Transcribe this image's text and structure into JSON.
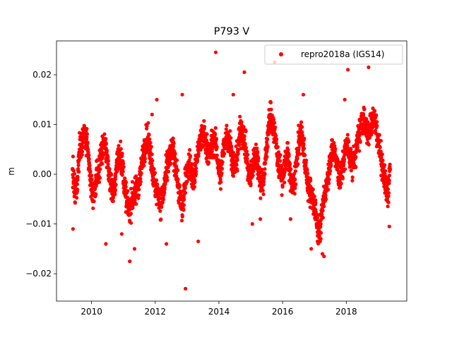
{
  "chart_data": {
    "type": "scatter",
    "title": "P793 V",
    "xlabel": "",
    "ylabel": "m",
    "xlim": [
      2008.9,
      2019.9
    ],
    "ylim": [
      -0.0255,
      0.0268
    ],
    "grid": false,
    "legend_position": "top-right",
    "marker_color": "#ff0000",
    "x_ticks": [
      2010,
      2012,
      2014,
      2016,
      2018
    ],
    "x_tick_labels": [
      "2010",
      "2012",
      "2014",
      "2016",
      "2018"
    ],
    "y_ticks": [
      -0.02,
      -0.01,
      0.0,
      0.01,
      0.02
    ],
    "y_tick_labels": [
      "−0.02",
      "−0.01",
      "0.00",
      "0.01",
      "0.02"
    ],
    "series": [
      {
        "name": "repro2018a (IGS14)",
        "color": "#ff0000",
        "x": [
          2009.4,
          2009.48,
          2009.55,
          2009.62,
          2009.7,
          2009.78,
          2009.85,
          2009.92,
          2010.0,
          2010.08,
          2010.15,
          2010.22,
          2010.3,
          2010.38,
          2010.45,
          2010.52,
          2010.6,
          2010.68,
          2010.75,
          2010.82,
          2010.9,
          2010.98,
          2011.05,
          2011.12,
          2011.2,
          2011.28,
          2011.35,
          2011.42,
          2011.5,
          2011.58,
          2011.65,
          2011.72,
          2011.8,
          2011.88,
          2011.95,
          2012.02,
          2012.1,
          2012.18,
          2012.25,
          2012.32,
          2012.4,
          2012.48,
          2012.55,
          2012.62,
          2012.7,
          2012.78,
          2012.85,
          2012.92,
          2013.0,
          2013.08,
          2013.15,
          2013.22,
          2013.3,
          2013.38,
          2013.45,
          2013.52,
          2013.6,
          2013.68,
          2013.75,
          2013.82,
          2013.9,
          2013.98,
          2014.05,
          2014.12,
          2014.2,
          2014.28,
          2014.35,
          2014.42,
          2014.5,
          2014.58,
          2014.65,
          2014.72,
          2014.8,
          2014.88,
          2014.95,
          2015.02,
          2015.1,
          2015.18,
          2015.25,
          2015.32,
          2015.4,
          2015.48,
          2015.55,
          2015.62,
          2015.7,
          2015.78,
          2015.85,
          2015.92,
          2016.0,
          2016.08,
          2016.15,
          2016.22,
          2016.3,
          2016.38,
          2016.45,
          2016.52,
          2016.6,
          2016.68,
          2016.75,
          2016.82,
          2016.9,
          2016.98,
          2017.05,
          2017.12,
          2017.2,
          2017.28,
          2017.35,
          2017.42,
          2017.5,
          2017.58,
          2017.65,
          2017.72,
          2017.8,
          2017.88,
          2017.95,
          2018.02,
          2018.1,
          2018.18,
          2018.25,
          2018.32,
          2018.4,
          2018.48,
          2018.55,
          2018.62,
          2018.7,
          2018.78,
          2018.85,
          2018.92,
          2019.0,
          2019.08,
          2019.15,
          2019.22,
          2019.3,
          2019.38
        ],
        "y": [
          0.001,
          -0.004,
          -0.002,
          0.005,
          0.007,
          0.008,
          0.006,
          0.002,
          -0.003,
          -0.004,
          -0.001,
          0.001,
          0.004,
          0.006,
          0.005,
          0.002,
          -0.002,
          -0.004,
          -0.001,
          0.003,
          0.004,
          0.001,
          -0.003,
          -0.006,
          -0.007,
          -0.005,
          -0.004,
          -0.003,
          -0.001,
          0.002,
          0.005,
          0.007,
          0.006,
          0.003,
          -0.001,
          -0.003,
          -0.004,
          -0.006,
          -0.004,
          -0.001,
          0.002,
          0.004,
          0.005,
          0.003,
          -0.001,
          -0.005,
          -0.007,
          -0.003,
          0.001,
          0.002,
          0.0,
          -0.001,
          0.003,
          0.006,
          0.007,
          0.008,
          0.006,
          0.004,
          0.005,
          0.007,
          0.006,
          0.002,
          -0.001,
          0.004,
          0.007,
          0.008,
          0.006,
          0.003,
          0.001,
          0.004,
          0.008,
          0.009,
          0.007,
          0.003,
          -0.001,
          0.0,
          0.003,
          0.004,
          0.001,
          -0.002,
          -0.001,
          0.004,
          0.009,
          0.012,
          0.01,
          0.007,
          0.003,
          0.001,
          -0.001,
          0.002,
          0.004,
          0.001,
          -0.003,
          -0.001,
          0.003,
          0.007,
          0.008,
          0.004,
          0.0,
          -0.003,
          -0.004,
          -0.006,
          -0.008,
          -0.012,
          -0.01,
          -0.006,
          -0.003,
          0.0,
          0.003,
          0.005,
          0.004,
          0.001,
          -0.001,
          0.001,
          0.004,
          0.006,
          0.004,
          0.002,
          0.003,
          0.005,
          0.008,
          0.01,
          0.011,
          0.009,
          0.008,
          0.01,
          0.012,
          0.01,
          0.007,
          0.004,
          0.001,
          -0.002,
          -0.004,
          0.001
        ]
      }
    ],
    "outliers": {
      "x": [
        2009.42,
        2010.45,
        2010.95,
        2011.2,
        2011.35,
        2011.9,
        2012.05,
        2012.35,
        2012.85,
        2012.95,
        2013.35,
        2013.9,
        2014.45,
        2014.8,
        2015.05,
        2015.3,
        2015.75,
        2016.25,
        2016.65,
        2016.9,
        2017.25,
        2017.3,
        2017.95,
        2018.05,
        2018.7,
        2019.35
      ],
      "y": [
        -0.011,
        -0.014,
        -0.012,
        -0.0175,
        -0.015,
        0.012,
        0.015,
        -0.014,
        0.016,
        -0.023,
        -0.0135,
        0.0245,
        0.016,
        0.0205,
        -0.01,
        -0.009,
        0.0225,
        -0.009,
        0.016,
        -0.015,
        -0.016,
        -0.0165,
        0.015,
        0.021,
        0.0215,
        -0.0105
      ]
    }
  }
}
